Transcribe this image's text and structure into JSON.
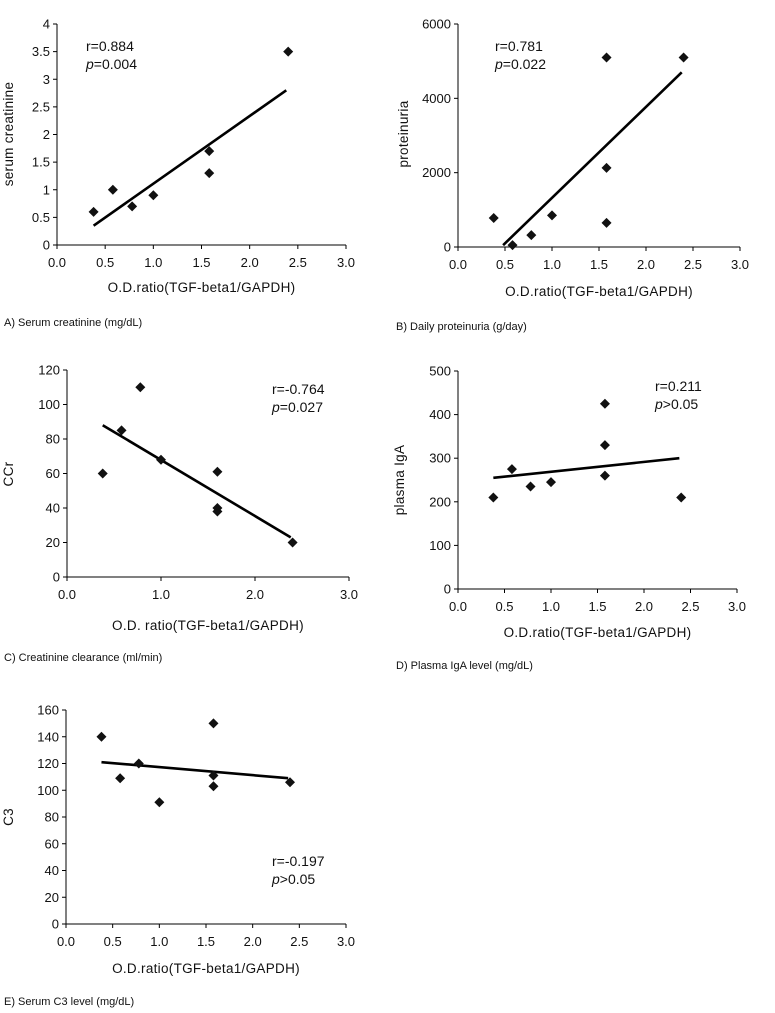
{
  "chart_data": [
    {
      "type": "scatter",
      "caption": "A)  Serum  creatinine  (mg/dL)",
      "xlabel": "O.D.ratio(TGF-beta1/GAPDH)",
      "ylabel": "serum creatinine",
      "x_ticks": [
        "0.0",
        "0.5",
        "1.0",
        "1.5",
        "2.0",
        "2.5",
        "3.0"
      ],
      "y_ticks": [
        "0",
        "0.5",
        "1",
        "1.5",
        "2",
        "2.5",
        "3",
        "3.5",
        "4"
      ],
      "xlim": [
        0,
        3
      ],
      "ylim": [
        0,
        4
      ],
      "points": [
        [
          0.38,
          0.6
        ],
        [
          0.58,
          1.0
        ],
        [
          0.78,
          0.7
        ],
        [
          1.0,
          0.9
        ],
        [
          1.58,
          1.7
        ],
        [
          1.58,
          1.3
        ],
        [
          2.4,
          3.5
        ]
      ],
      "fit_line": [
        [
          0.38,
          0.35
        ],
        [
          2.38,
          2.8
        ]
      ],
      "stat_r": "r=0.884",
      "stat_p_symbol": "p",
      "stat_p_value": "=0.004"
    },
    {
      "type": "scatter",
      "caption": "B)  Daily  proteinuria  (g/day)",
      "xlabel": "O.D.ratio(TGF-beta1/GAPDH)",
      "ylabel": "proteinuria",
      "x_ticks": [
        "0.0",
        "0.5",
        "1.0",
        "1.5",
        "2.0",
        "2.5",
        "3.0"
      ],
      "y_ticks": [
        "0",
        "2000",
        "4000",
        "6000"
      ],
      "xlim": [
        0,
        3
      ],
      "ylim": [
        0,
        6000
      ],
      "points": [
        [
          0.38,
          780
        ],
        [
          0.58,
          50
        ],
        [
          0.78,
          320
        ],
        [
          1.0,
          850
        ],
        [
          1.58,
          5100
        ],
        [
          1.58,
          2130
        ],
        [
          1.58,
          650
        ],
        [
          2.4,
          5100
        ]
      ],
      "fit_line": [
        [
          0.48,
          50
        ],
        [
          2.38,
          4700
        ]
      ],
      "stat_r": "r=0.781",
      "stat_p_symbol": "p",
      "stat_p_value": "=0.022"
    },
    {
      "type": "scatter",
      "caption": "C)  Creatinine  clearance  (ml/min)",
      "xlabel": "O.D. ratio(TGF-beta1/GAPDH)",
      "ylabel": "CCr",
      "x_ticks": [
        "0.0",
        "1.0",
        "2.0",
        "3.0"
      ],
      "y_ticks": [
        "0",
        "20",
        "40",
        "60",
        "80",
        "100",
        "120"
      ],
      "xlim": [
        0,
        3
      ],
      "ylim": [
        0,
        120
      ],
      "points": [
        [
          0.38,
          60
        ],
        [
          0.58,
          85
        ],
        [
          0.78,
          110
        ],
        [
          1.0,
          68
        ],
        [
          1.6,
          61
        ],
        [
          1.6,
          40
        ],
        [
          1.6,
          38
        ],
        [
          2.4,
          20
        ]
      ],
      "fit_line": [
        [
          0.38,
          88
        ],
        [
          2.38,
          23
        ]
      ],
      "stat_r": "r=-0.764",
      "stat_p_symbol": "p",
      "stat_p_value": "=0.027"
    },
    {
      "type": "scatter",
      "caption": "D)  Plasma  IgA  level  (mg/dL)",
      "xlabel": "O.D.ratio(TGF-beta1/GAPDH)",
      "ylabel": "plasma IgA",
      "x_ticks": [
        "0.0",
        "0.5",
        "1.0",
        "1.5",
        "2.0",
        "2.5",
        "3.0"
      ],
      "y_ticks": [
        "0",
        "100",
        "200",
        "300",
        "400",
        "500"
      ],
      "xlim": [
        0,
        3
      ],
      "ylim": [
        0,
        500
      ],
      "points": [
        [
          0.38,
          210
        ],
        [
          0.58,
          275
        ],
        [
          0.78,
          235
        ],
        [
          1.0,
          245
        ],
        [
          1.58,
          425
        ],
        [
          1.58,
          330
        ],
        [
          1.58,
          260
        ],
        [
          2.4,
          210
        ]
      ],
      "fit_line": [
        [
          0.38,
          255
        ],
        [
          2.38,
          300
        ]
      ],
      "stat_r": "r=0.211",
      "stat_p_symbol": "p",
      "stat_p_value": ">0.05"
    },
    {
      "type": "scatter",
      "caption": "E)  Serum  C3  level  (mg/dL)",
      "xlabel": "O.D.ratio(TGF-beta1/GAPDH)",
      "ylabel": "C3",
      "x_ticks": [
        "0.0",
        "0.5",
        "1.0",
        "1.5",
        "2.0",
        "2.5",
        "3.0"
      ],
      "y_ticks": [
        "0",
        "20",
        "40",
        "60",
        "80",
        "100",
        "120",
        "140",
        "160"
      ],
      "xlim": [
        0,
        3
      ],
      "ylim": [
        0,
        160
      ],
      "points": [
        [
          0.38,
          140
        ],
        [
          0.58,
          109
        ],
        [
          0.78,
          120
        ],
        [
          1.0,
          91
        ],
        [
          1.58,
          150
        ],
        [
          1.58,
          111
        ],
        [
          1.58,
          103
        ],
        [
          2.4,
          106
        ]
      ],
      "fit_line": [
        [
          0.38,
          121
        ],
        [
          2.38,
          109
        ]
      ],
      "stat_r": "r=-0.197",
      "stat_p_symbol": "p",
      "stat_p_value": ">0.05"
    }
  ]
}
